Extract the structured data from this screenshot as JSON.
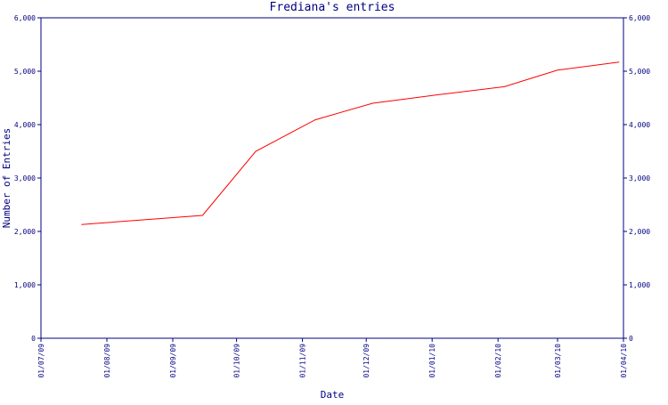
{
  "chart_data": {
    "type": "line",
    "title": "Frediana's entries",
    "xlabel": "Date",
    "ylabel": "Number of Entries",
    "ylim": [
      0,
      6000
    ],
    "y_ticks": [
      "0",
      "1,000",
      "2,000",
      "3,000",
      "4,000",
      "5,000",
      "6,000"
    ],
    "y_tick_values": [
      0,
      1000,
      2000,
      3000,
      4000,
      5000,
      6000
    ],
    "x_range": [
      "2009-07-01",
      "2010-04-01"
    ],
    "x_ticks": [
      "01/07/09",
      "01/08/09",
      "01/09/09",
      "01/10/09",
      "01/11/09",
      "01/12/09",
      "01/01/10",
      "01/02/10",
      "01/03/10",
      "01/04/10"
    ],
    "x_tick_dates": [
      "2009-07-01",
      "2009-08-01",
      "2009-09-01",
      "2009-10-01",
      "2009-11-01",
      "2009-12-01",
      "2010-01-01",
      "2010-02-01",
      "2010-03-01",
      "2010-04-01"
    ],
    "grid": false,
    "right_axis_mirrored": true,
    "series": [
      {
        "color": "#ff0000",
        "points": [
          {
            "x": "2009-07-20",
            "y": 2130
          },
          {
            "x": "2009-09-15",
            "y": 2300
          },
          {
            "x": "2009-10-10",
            "y": 3500
          },
          {
            "x": "2009-11-07",
            "y": 4090
          },
          {
            "x": "2009-12-04",
            "y": 4400
          },
          {
            "x": "2010-01-04",
            "y": 4560
          },
          {
            "x": "2010-02-04",
            "y": 4710
          },
          {
            "x": "2010-03-01",
            "y": 5020
          },
          {
            "x": "2010-03-30",
            "y": 5170
          }
        ]
      }
    ],
    "colors": {
      "axis": "#000080",
      "text": "#000080",
      "line": "#ff0000"
    }
  }
}
